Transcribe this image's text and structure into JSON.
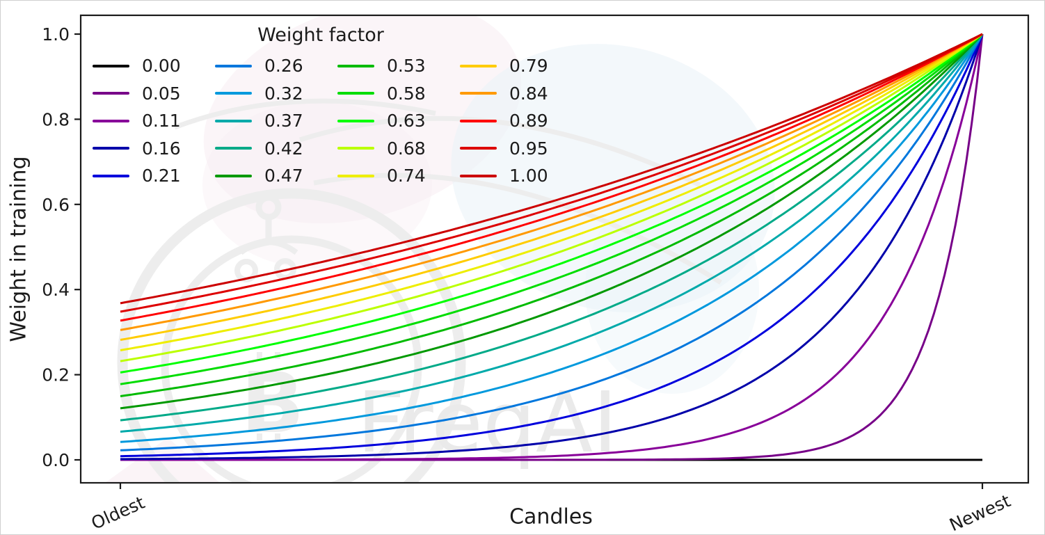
{
  "figure": {
    "background": "#ffffff",
    "border_color": "#cfcfcf",
    "spine_color": "#1a1a1a",
    "tick_label_color": "#1b1b1b"
  },
  "watermark": {
    "text": "FreqAI",
    "glyph": "B",
    "text_color": "#ebebeb",
    "emblem_color": "#ededed",
    "leaf_pink_color": "#f8edf2",
    "leaf_blue_color": "#eaf3f8"
  },
  "chart_data": {
    "type": "line",
    "title": "",
    "xlabel": "Candles",
    "ylabel": "Weight in training",
    "x_range": [
      0,
      1
    ],
    "ylim": [
      0,
      1
    ],
    "grid": false,
    "x_tick_labels": [
      "Oldest",
      "Newest"
    ],
    "x_tick_positions": [
      0,
      1
    ],
    "x_tick_rotation_deg": -24,
    "y_ticks": [
      0.0,
      0.2,
      0.4,
      0.6,
      0.8,
      1.0
    ],
    "y_tick_labels": [
      "0.0",
      "0.2",
      "0.4",
      "0.6",
      "0.8",
      "1.0"
    ],
    "legend": {
      "title": "Weight factor",
      "position": "upper left",
      "columns": 4,
      "order": "column-major",
      "frame": false
    },
    "curve_formula": "weight = exp(-(1 - x) / factor); factor = 0 gives weight = 0 everywhere",
    "x_samples": [
      0,
      0.1,
      0.2,
      0.3,
      0.4,
      0.5,
      0.6,
      0.7,
      0.8,
      0.9,
      1.0
    ],
    "series": [
      {
        "label": "0.00",
        "factor": 0.0,
        "color": "#000000",
        "y_samples": [
          0,
          0,
          0,
          0,
          0,
          0,
          0,
          0,
          0,
          0,
          0
        ]
      },
      {
        "label": "0.05",
        "factor": 0.0526,
        "color": "#770088",
        "y_samples": [
          0,
          0,
          0,
          0,
          0,
          0.0001,
          0.0005,
          0.0033,
          0.0224,
          0.1496,
          1
        ]
      },
      {
        "label": "0.11",
        "factor": 0.1053,
        "color": "#880099",
        "y_samples": [
          0.0001,
          0.0002,
          0.0005,
          0.0013,
          0.0033,
          0.0087,
          0.0224,
          0.0578,
          0.1496,
          0.3867,
          1
        ]
      },
      {
        "label": "0.16",
        "factor": 0.1579,
        "color": "#0000AA",
        "y_samples": [
          0.0018,
          0.0033,
          0.0063,
          0.0119,
          0.0224,
          0.0421,
          0.0794,
          0.1496,
          0.2818,
          0.5309,
          1
        ]
      },
      {
        "label": "0.21",
        "factor": 0.2105,
        "color": "#0000DD",
        "y_samples": [
          0.0087,
          0.0139,
          0.0224,
          0.036,
          0.0578,
          0.093,
          0.1496,
          0.2405,
          0.3867,
          0.6219,
          1
        ]
      },
      {
        "label": "0.26",
        "factor": 0.2632,
        "color": "#0077DD",
        "y_samples": [
          0.0224,
          0.0327,
          0.0478,
          0.0699,
          0.1023,
          0.1496,
          0.2187,
          0.3198,
          0.4677,
          0.6839,
          1
        ]
      },
      {
        "label": "0.32",
        "factor": 0.3158,
        "color": "#0099DD",
        "y_samples": [
          0.0421,
          0.0578,
          0.0794,
          0.1089,
          0.1496,
          0.2053,
          0.2818,
          0.3867,
          0.5309,
          0.7286,
          1
        ]
      },
      {
        "label": "0.37",
        "factor": 0.3684,
        "color": "#00AAAA",
        "y_samples": [
          0.0662,
          0.0868,
          0.114,
          0.1496,
          0.1962,
          0.2574,
          0.3376,
          0.4429,
          0.5811,
          0.7623,
          1
        ]
      },
      {
        "label": "0.42",
        "factor": 0.4211,
        "color": "#00AA88",
        "y_samples": [
          0.093,
          0.1179,
          0.1496,
          0.1897,
          0.2405,
          0.305,
          0.3867,
          0.4904,
          0.6219,
          0.7886,
          1
        ]
      },
      {
        "label": "0.47",
        "factor": 0.4737,
        "color": "#009900",
        "y_samples": [
          0.1211,
          0.1496,
          0.1847,
          0.2281,
          0.2818,
          0.348,
          0.4298,
          0.5309,
          0.6556,
          0.8097,
          1
        ]
      },
      {
        "label": "0.53",
        "factor": 0.5263,
        "color": "#00BB00",
        "y_samples": [
          0.1496,
          0.1809,
          0.2187,
          0.2645,
          0.3198,
          0.3867,
          0.4677,
          0.5655,
          0.6839,
          0.827,
          1
        ]
      },
      {
        "label": "0.58",
        "factor": 0.5789,
        "color": "#00DD00",
        "y_samples": [
          0.1778,
          0.2113,
          0.2511,
          0.2985,
          0.3547,
          0.4216,
          0.5011,
          0.5956,
          0.7079,
          0.8414,
          1
        ]
      },
      {
        "label": "0.63",
        "factor": 0.6316,
        "color": "#00FF00",
        "y_samples": [
          0.2053,
          0.2405,
          0.2818,
          0.3301,
          0.3867,
          0.4531,
          0.5309,
          0.6219,
          0.7286,
          0.8536,
          1
        ]
      },
      {
        "label": "0.68",
        "factor": 0.6842,
        "color": "#BBFF00",
        "y_samples": [
          0.2319,
          0.2683,
          0.3106,
          0.3595,
          0.416,
          0.4815,
          0.5573,
          0.645,
          0.7466,
          0.864,
          1
        ]
      },
      {
        "label": "0.74",
        "factor": 0.7368,
        "color": "#EEEE00",
        "y_samples": [
          0.2574,
          0.2948,
          0.3376,
          0.3867,
          0.4429,
          0.5073,
          0.5811,
          0.6656,
          0.7623,
          0.8731,
          1
        ]
      },
      {
        "label": "0.79",
        "factor": 0.7895,
        "color": "#FFCC00",
        "y_samples": [
          0.2818,
          0.3198,
          0.363,
          0.412,
          0.4677,
          0.5309,
          0.6025,
          0.6839,
          0.7762,
          0.881,
          1
        ]
      },
      {
        "label": "0.84",
        "factor": 0.8421,
        "color": "#FF9900",
        "y_samples": [
          0.305,
          0.3434,
          0.3867,
          0.4355,
          0.4904,
          0.5522,
          0.6219,
          0.7003,
          0.7886,
          0.888,
          1
        ]
      },
      {
        "label": "0.89",
        "factor": 0.8947,
        "color": "#FF0000",
        "y_samples": [
          0.3271,
          0.3657,
          0.409,
          0.4573,
          0.5114,
          0.5719,
          0.6395,
          0.7151,
          0.7997,
          0.8943,
          1
        ]
      },
      {
        "label": "0.95",
        "factor": 0.9474,
        "color": "#DD0000",
        "y_samples": [
          0.348,
          0.3867,
          0.4298,
          0.4776,
          0.5309,
          0.59,
          0.6556,
          0.7286,
          0.8097,
          0.8998,
          1
        ]
      },
      {
        "label": "1.00",
        "factor": 1.0,
        "color": "#CC0000",
        "y_samples": [
          0.3679,
          0.4066,
          0.4493,
          0.4966,
          0.5488,
          0.6065,
          0.6703,
          0.7408,
          0.8187,
          0.9048,
          1
        ]
      }
    ]
  }
}
